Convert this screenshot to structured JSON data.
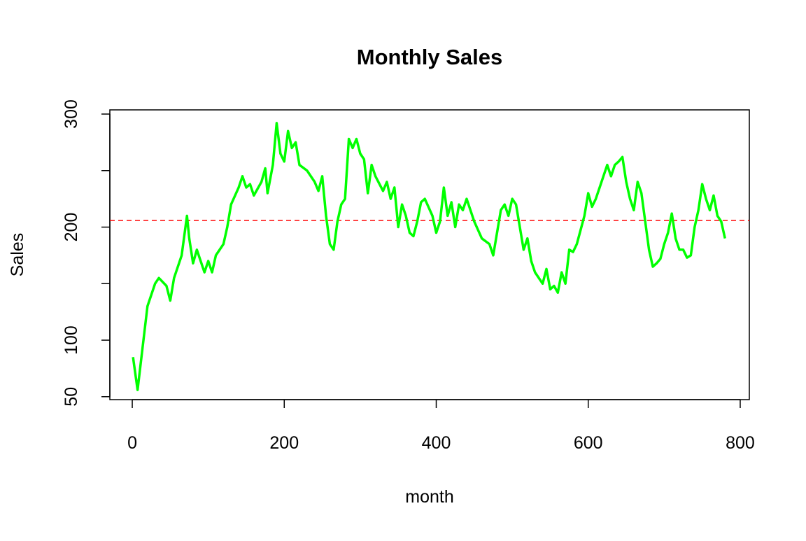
{
  "chart_data": {
    "type": "line",
    "title": "Monthly Sales",
    "x_label": "month",
    "y_label": "Sales",
    "x": [
      1,
      7,
      20,
      30,
      35,
      45,
      50,
      55,
      60,
      65,
      72,
      75,
      80,
      85,
      95,
      100,
      105,
      110,
      120,
      125,
      130,
      140,
      145,
      150,
      155,
      160,
      170,
      175,
      178,
      185,
      190,
      195,
      200,
      205,
      210,
      215,
      220,
      230,
      240,
      245,
      250,
      255,
      260,
      265,
      270,
      275,
      280,
      285,
      290,
      295,
      300,
      305,
      310,
      315,
      320,
      330,
      335,
      340,
      345,
      350,
      355,
      360,
      365,
      370,
      375,
      380,
      385,
      395,
      400,
      405,
      410,
      415,
      420,
      425,
      430,
      435,
      440,
      450,
      460,
      470,
      475,
      480,
      485,
      490,
      495,
      500,
      505,
      515,
      520,
      525,
      530,
      540,
      545,
      550,
      555,
      560,
      565,
      570,
      575,
      580,
      585,
      595,
      600,
      605,
      610,
      615,
      625,
      630,
      635,
      640,
      645,
      650,
      655,
      660,
      665,
      670,
      675,
      680,
      685,
      690,
      695,
      700,
      705,
      710,
      715,
      720,
      725,
      730,
      735,
      740,
      745,
      750,
      755,
      760,
      765,
      770,
      775,
      780
    ],
    "series": [
      {
        "name": "Sales",
        "color": "#00ff00",
        "values": [
          85,
          56,
          130,
          150,
          155,
          148,
          135,
          155,
          165,
          175,
          210,
          190,
          168,
          180,
          160,
          170,
          160,
          175,
          185,
          200,
          220,
          235,
          245,
          235,
          238,
          228,
          240,
          252,
          230,
          255,
          292,
          265,
          258,
          285,
          270,
          275,
          255,
          250,
          240,
          232,
          245,
          210,
          185,
          180,
          205,
          220,
          225,
          278,
          270,
          278,
          265,
          260,
          230,
          255,
          245,
          232,
          240,
          225,
          235,
          200,
          220,
          210,
          195,
          192,
          205,
          222,
          225,
          210,
          195,
          205,
          235,
          210,
          222,
          200,
          220,
          215,
          225,
          205,
          190,
          185,
          175,
          195,
          215,
          220,
          210,
          225,
          220,
          180,
          190,
          170,
          160,
          150,
          163,
          145,
          148,
          142,
          160,
          150,
          180,
          178,
          185,
          210,
          230,
          218,
          225,
          235,
          255,
          245,
          255,
          258,
          262,
          240,
          225,
          215,
          240,
          230,
          205,
          180,
          165,
          168,
          172,
          185,
          195,
          212,
          190,
          180,
          180,
          173,
          175,
          200,
          215,
          238,
          225,
          215,
          228,
          210,
          205,
          190
        ]
      }
    ],
    "hline": {
      "value": 206,
      "color": "#ff0000"
    },
    "xlim": [
      -29.5,
      812
    ],
    "xticks": [
      0,
      200,
      400,
      600,
      800
    ],
    "ylim": [
      47.4,
      303.7
    ],
    "yticks": [
      50,
      100,
      {
        "value": 150,
        "label": null
      },
      200,
      {
        "value": 250,
        "label": null
      },
      300
    ]
  }
}
